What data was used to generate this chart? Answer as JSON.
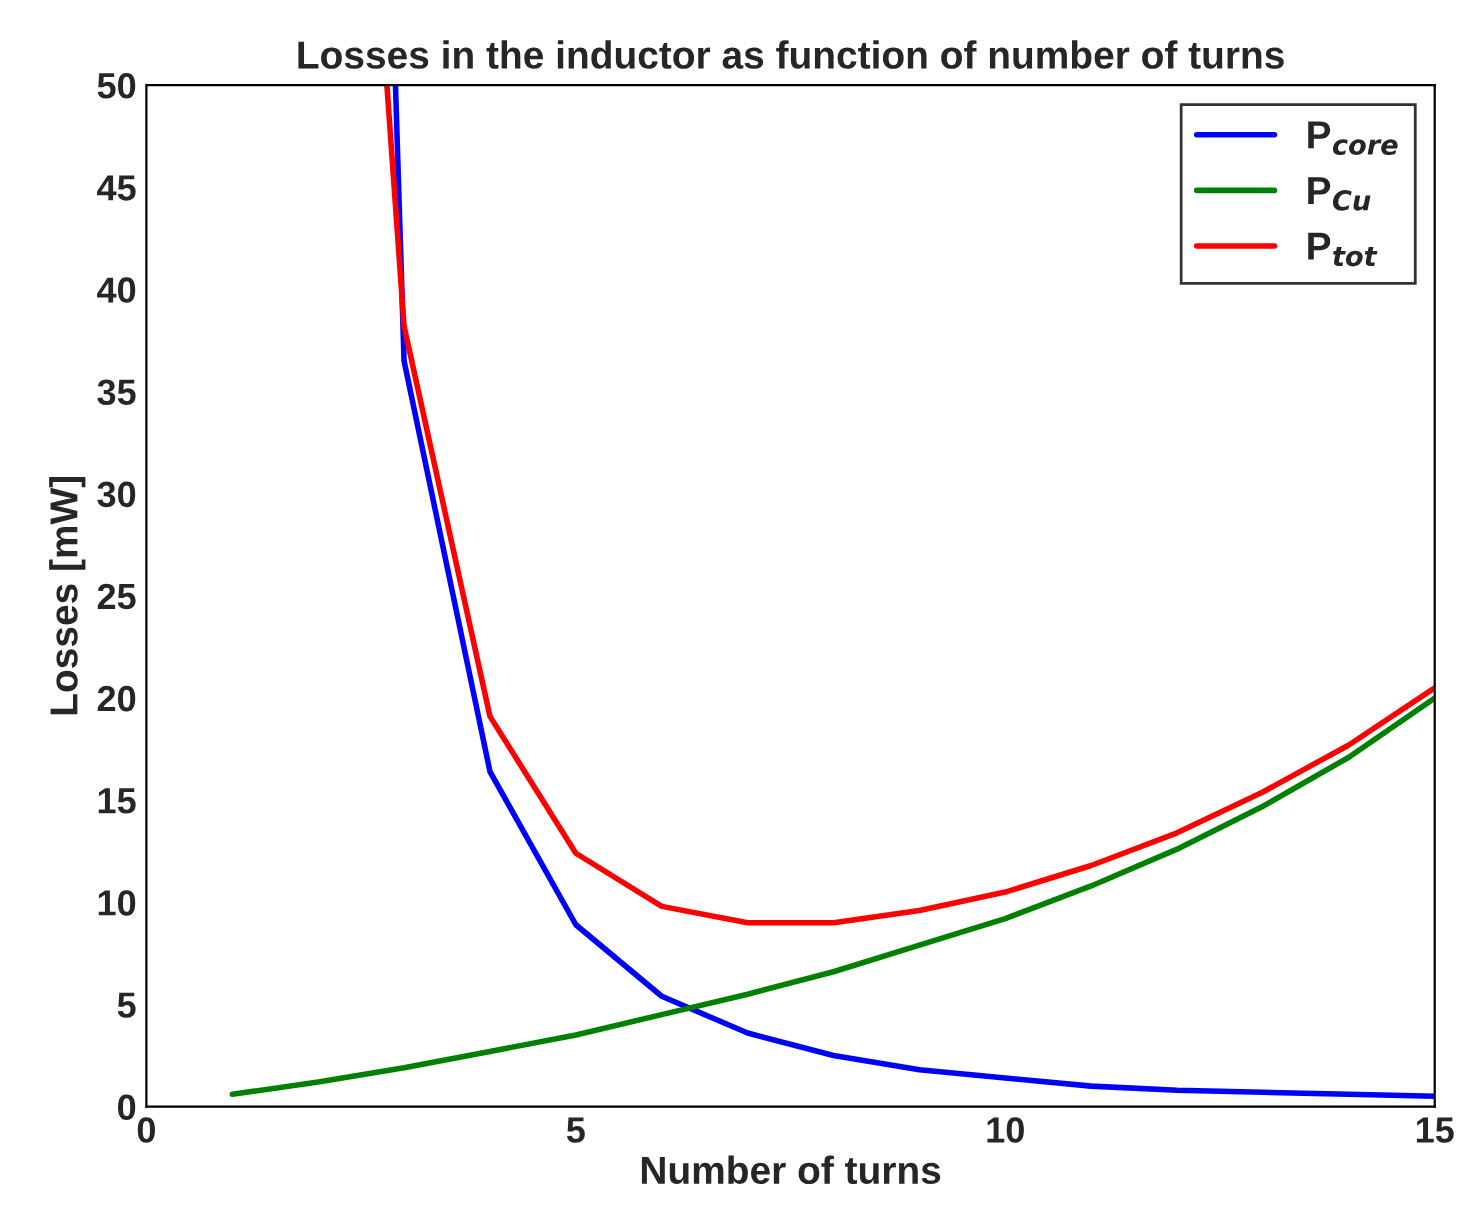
{
  "chart_data": {
    "type": "line",
    "title": "Losses in the inductor as function of number of turns",
    "xlabel": "Number of turns",
    "ylabel": "Losses [mW]",
    "series": [
      {
        "name": "P$_{core}$",
        "color": "#0000ff",
        "x": [
          2.9,
          3,
          4,
          5,
          6,
          7,
          8,
          9,
          10,
          11,
          12,
          13,
          14,
          15
        ],
        "values": [
          50,
          36.5,
          16.4,
          8.9,
          5.4,
          3.6,
          2.5,
          1.8,
          1.4,
          1.0,
          0.8,
          0.7,
          0.6,
          0.5
        ]
      },
      {
        "name": "P$_{Cu}$",
        "color": "#008000",
        "x": [
          1,
          2,
          3,
          4,
          5,
          6,
          7,
          8,
          9,
          10,
          11,
          12,
          13,
          14,
          15
        ],
        "values": [
          0.6,
          1.2,
          1.9,
          2.7,
          3.5,
          4.5,
          5.5,
          6.6,
          7.9,
          9.2,
          10.8,
          12.6,
          14.7,
          17.1,
          20.0
        ]
      },
      {
        "name": "P$_{tot}$",
        "color": "#ff0000",
        "x": [
          2.8,
          3,
          4,
          5,
          6,
          7,
          8,
          9,
          10,
          11,
          12,
          13,
          14,
          15
        ],
        "values": [
          50,
          38.2,
          19.1,
          12.4,
          9.8,
          9.0,
          9.0,
          9.6,
          10.5,
          11.8,
          13.4,
          15.4,
          17.7,
          20.5
        ]
      }
    ],
    "xlim": [
      0,
      15
    ],
    "xticks": [
      0,
      5,
      10,
      15
    ],
    "ylim": [
      0,
      50
    ],
    "yticks": [
      0,
      5,
      10,
      15,
      20,
      25,
      30,
      35,
      40,
      45,
      50
    ],
    "legend": "top right",
    "grid": false
  }
}
